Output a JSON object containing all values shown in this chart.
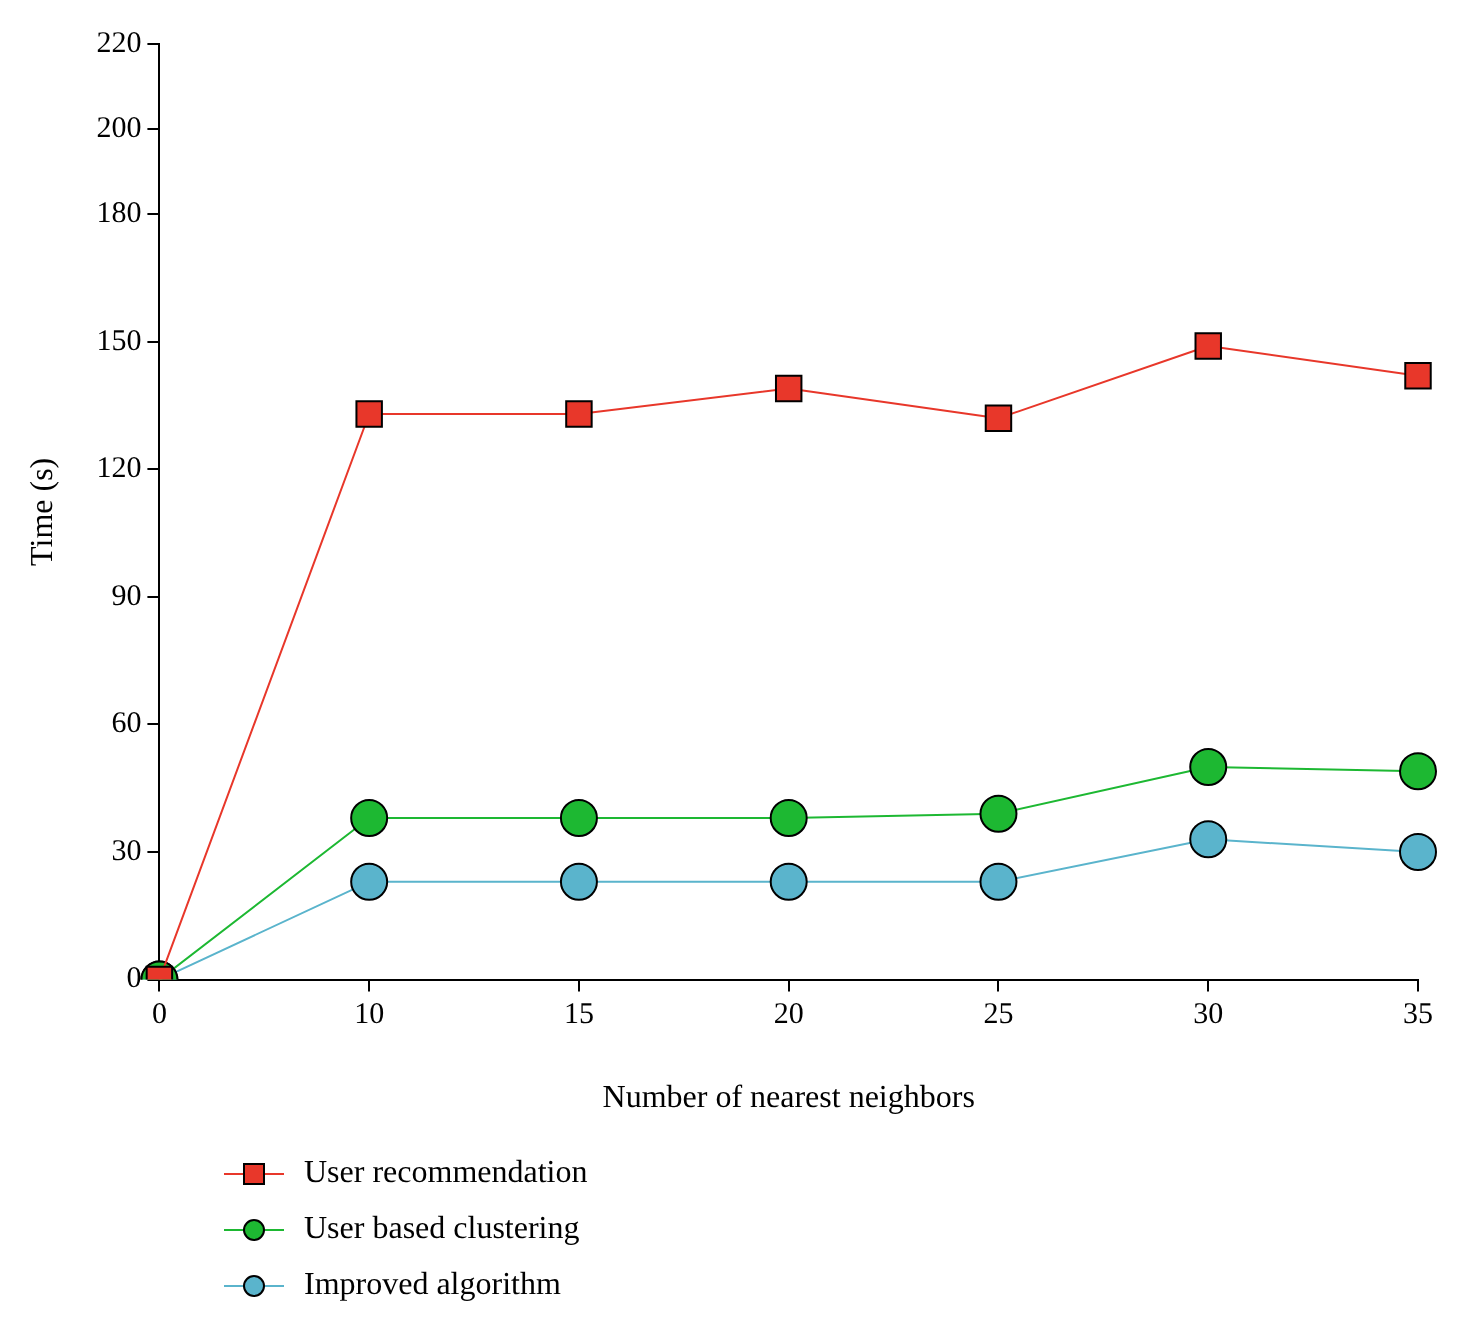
{
  "chart_data": {
    "type": "line",
    "xlabel": "Number of nearest neighbors",
    "ylabel": "Time (s)",
    "categories": [
      "0",
      "10",
      "15",
      "20",
      "25",
      "30",
      "35"
    ],
    "series": [
      {
        "name": "User recommendation",
        "color": "#e8372a",
        "marker": "square",
        "values": [
          0,
          133,
          133,
          139,
          132,
          149,
          142
        ]
      },
      {
        "name": "User based clustering",
        "color": "#1db832",
        "marker": "circle",
        "values": [
          0,
          38,
          38,
          38,
          39,
          50,
          49
        ]
      },
      {
        "name": "Improved algorithm",
        "color": "#5ab4cc",
        "marker": "circle",
        "values": [
          0,
          23,
          23,
          23,
          23,
          33,
          30
        ]
      }
    ],
    "ylim": [
      0,
      220
    ],
    "yticks": [
      0,
      30,
      60,
      90,
      120,
      150,
      180,
      200,
      220
    ],
    "grid": false,
    "legend": "bottom"
  }
}
